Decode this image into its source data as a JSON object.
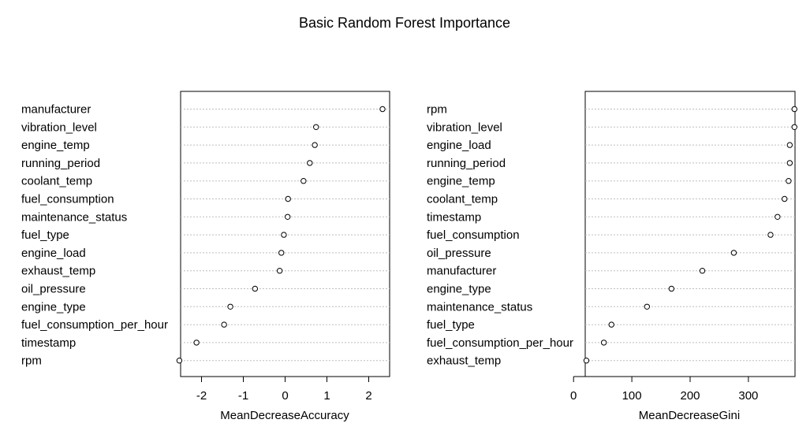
{
  "title": "Basic Random Forest Importance",
  "chart_data": [
    {
      "type": "scatter",
      "xlabel": "MeanDecreaseAccuracy",
      "xlim": [
        -2.5,
        2.5
      ],
      "xticks": [
        -2,
        -1,
        0,
        1,
        2
      ],
      "grid": false,
      "categories": [
        "manufacturer",
        "vibration_level",
        "engine_temp",
        "running_period",
        "coolant_temp",
        "fuel_consumption",
        "maintenance_status",
        "fuel_type",
        "engine_load",
        "exhaust_temp",
        "oil_pressure",
        "engine_type",
        "fuel_consumption_per_hour",
        "timestamp",
        "rpm"
      ],
      "values": [
        2.33,
        0.74,
        0.71,
        0.59,
        0.44,
        0.07,
        0.06,
        -0.03,
        -0.09,
        -0.13,
        -0.72,
        -1.31,
        -1.46,
        -2.12,
        -2.53
      ]
    },
    {
      "type": "scatter",
      "xlabel": "MeanDecreaseGini",
      "xlim": [
        20,
        380
      ],
      "xticks": [
        0,
        100,
        200,
        300
      ],
      "grid": false,
      "categories": [
        "rpm",
        "vibration_level",
        "engine_load",
        "running_period",
        "engine_temp",
        "coolant_temp",
        "timestamp",
        "fuel_consumption",
        "oil_pressure",
        "manufacturer",
        "engine_type",
        "maintenance_status",
        "fuel_type",
        "fuel_consumption_per_hour",
        "exhaust_temp"
      ],
      "values": [
        379,
        379,
        371,
        371,
        369,
        362,
        350,
        338,
        275,
        221,
        168,
        126,
        65,
        52,
        22
      ]
    }
  ]
}
